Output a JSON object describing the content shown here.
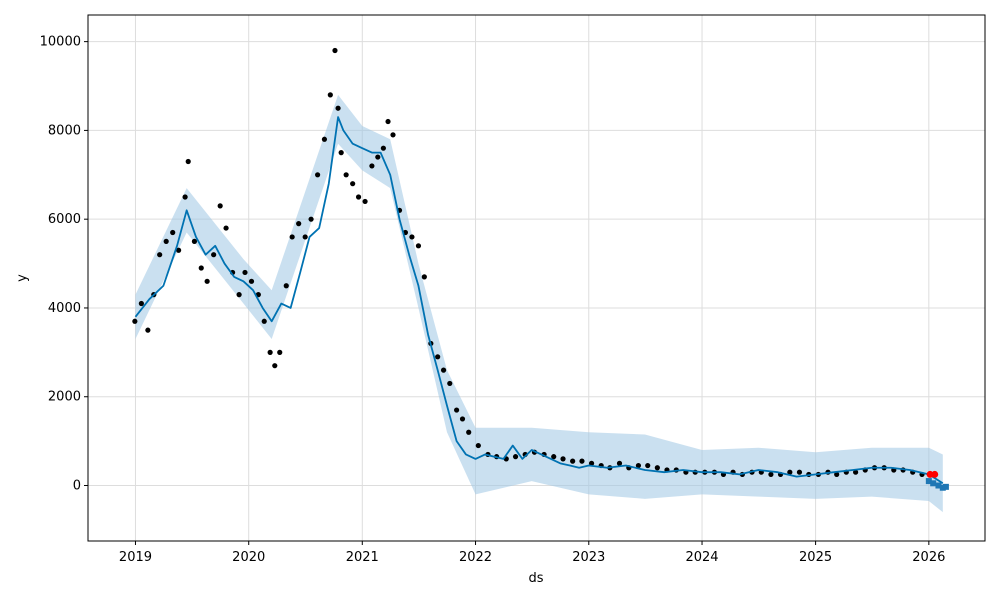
{
  "chart_data": {
    "type": "line",
    "title": "",
    "xlabel": "ds",
    "ylabel": "y",
    "x_range": [
      "2018-08-01",
      "2026-07-01"
    ],
    "ylim": [
      -1250,
      10600
    ],
    "x_ticks": [
      "2019",
      "2020",
      "2021",
      "2022",
      "2023",
      "2024",
      "2025",
      "2026"
    ],
    "y_ticks": [
      0,
      2000,
      4000,
      6000,
      8000,
      10000
    ],
    "grid": true,
    "legend": "none",
    "colors": {
      "forecast_line": "#0072B2",
      "uncertainty_band": "#9ec6e3",
      "observed_points": "#000000",
      "highlight_points": "#ff0000",
      "future_points": "#1f77b4"
    },
    "series": [
      {
        "role": "forecast",
        "x": [
          "2019-01-01",
          "2019-02-15",
          "2019-04-01",
          "2019-05-15",
          "2019-06-15",
          "2019-07-15",
          "2019-08-15",
          "2019-09-15",
          "2019-10-15",
          "2019-11-15",
          "2019-12-15",
          "2020-01-15",
          "2020-02-15",
          "2020-03-15",
          "2020-04-15",
          "2020-05-15",
          "2020-06-15",
          "2020-07-15",
          "2020-08-15",
          "2020-09-15",
          "2020-10-15",
          "2020-11-01",
          "2020-12-01",
          "2021-01-01",
          "2021-02-01",
          "2021-03-01",
          "2021-04-01",
          "2021-05-01",
          "2021-06-01",
          "2021-07-01",
          "2021-08-01",
          "2021-09-01",
          "2021-10-01",
          "2021-11-01",
          "2021-12-01",
          "2022-01-01",
          "2022-02-01",
          "2022-03-01",
          "2022-04-01",
          "2022-05-01",
          "2022-06-01",
          "2022-07-01",
          "2022-08-01",
          "2022-09-01",
          "2022-10-01",
          "2022-11-01",
          "2022-12-01",
          "2023-01-01",
          "2023-03-01",
          "2023-05-01",
          "2023-07-01",
          "2023-09-01",
          "2023-11-01",
          "2024-01-01",
          "2024-03-01",
          "2024-05-01",
          "2024-07-01",
          "2024-09-01",
          "2024-11-01",
          "2025-01-01",
          "2025-03-01",
          "2025-05-01",
          "2025-07-01",
          "2025-09-01",
          "2025-11-01",
          "2026-01-01",
          "2026-02-15"
        ],
        "values": [
          3800,
          4200,
          4500,
          5400,
          6200,
          5600,
          5200,
          5400,
          5000,
          4700,
          4600,
          4400,
          4000,
          3700,
          4100,
          4000,
          4800,
          5600,
          5800,
          6800,
          8300,
          8000,
          7700,
          7600,
          7500,
          7500,
          7000,
          6000,
          5200,
          4500,
          3400,
          2600,
          1800,
          1000,
          700,
          600,
          700,
          650,
          600,
          900,
          600,
          800,
          700,
          600,
          500,
          450,
          400,
          450,
          400,
          450,
          350,
          300,
          350,
          300,
          300,
          250,
          350,
          300,
          200,
          250,
          300,
          350,
          400,
          400,
          350,
          250,
          50
        ]
      },
      {
        "role": "uncertainty_upper",
        "x": [
          "2019-01-01",
          "2019-06-15",
          "2019-12-15",
          "2020-03-15",
          "2020-10-15",
          "2021-01-01",
          "2021-04-01",
          "2021-07-01",
          "2021-10-01",
          "2022-01-01",
          "2022-07-01",
          "2023-01-01",
          "2023-07-01",
          "2024-01-01",
          "2024-07-01",
          "2025-01-01",
          "2025-07-01",
          "2026-01-01",
          "2026-02-15"
        ],
        "values": [
          4300,
          6700,
          5100,
          4400,
          8800,
          8100,
          7800,
          5000,
          2600,
          1300,
          1300,
          1200,
          1150,
          800,
          850,
          750,
          850,
          850,
          700
        ]
      },
      {
        "role": "uncertainty_lower",
        "x": [
          "2019-01-01",
          "2019-06-15",
          "2019-12-15",
          "2020-03-15",
          "2020-10-15",
          "2021-01-01",
          "2021-04-01",
          "2021-07-01",
          "2021-10-01",
          "2022-01-01",
          "2022-07-01",
          "2023-01-01",
          "2023-07-01",
          "2024-01-01",
          "2024-07-01",
          "2025-01-01",
          "2025-07-01",
          "2026-01-01",
          "2026-02-15"
        ],
        "values": [
          3300,
          5700,
          4100,
          3300,
          7700,
          7100,
          6700,
          4000,
          1200,
          -200,
          100,
          -200,
          -300,
          -200,
          -250,
          -300,
          -250,
          -350,
          -600
        ]
      },
      {
        "role": "observed",
        "x": [
          "2018-12-30",
          "2019-01-20",
          "2019-02-10",
          "2019-03-01",
          "2019-03-20",
          "2019-04-10",
          "2019-05-01",
          "2019-05-20",
          "2019-06-10",
          "2019-06-20",
          "2019-07-10",
          "2019-08-01",
          "2019-08-20",
          "2019-09-10",
          "2019-10-01",
          "2019-10-20",
          "2019-11-10",
          "2019-12-01",
          "2019-12-20",
          "2020-01-10",
          "2020-02-01",
          "2020-02-20",
          "2020-03-10",
          "2020-03-25",
          "2020-04-10",
          "2020-05-01",
          "2020-05-20",
          "2020-06-10",
          "2020-07-01",
          "2020-07-20",
          "2020-08-10",
          "2020-09-01",
          "2020-09-20",
          "2020-10-05",
          "2020-10-15",
          "2020-10-25",
          "2020-11-10",
          "2020-12-01",
          "2020-12-20",
          "2021-01-10",
          "2021-02-01",
          "2021-02-20",
          "2021-03-10",
          "2021-03-25",
          "2021-04-10",
          "2021-05-01",
          "2021-05-20",
          "2021-06-10",
          "2021-07-01",
          "2021-07-20",
          "2021-08-10",
          "2021-09-01",
          "2021-09-20",
          "2021-10-10",
          "2021-11-01",
          "2021-11-20",
          "2021-12-10",
          "2022-01-10",
          "2022-02-10",
          "2022-03-10",
          "2022-04-10",
          "2022-05-10",
          "2022-06-10",
          "2022-07-10",
          "2022-08-10",
          "2022-09-10",
          "2022-10-10",
          "2022-11-10",
          "2022-12-10",
          "2023-01-10",
          "2023-02-10",
          "2023-03-10",
          "2023-04-10",
          "2023-05-10",
          "2023-06-10",
          "2023-07-10",
          "2023-08-10",
          "2023-09-10",
          "2023-10-10",
          "2023-11-10",
          "2023-12-10",
          "2024-01-10",
          "2024-02-10",
          "2024-03-10",
          "2024-04-10",
          "2024-05-10",
          "2024-06-10",
          "2024-07-10",
          "2024-08-10",
          "2024-09-10",
          "2024-10-10",
          "2024-11-10",
          "2024-12-10",
          "2025-01-10",
          "2025-02-10",
          "2025-03-10",
          "2025-04-10",
          "2025-05-10",
          "2025-06-10",
          "2025-07-10",
          "2025-08-10",
          "2025-09-10",
          "2025-10-10",
          "2025-11-10",
          "2025-12-10"
        ],
        "values": [
          3700,
          4100,
          3500,
          4300,
          5200,
          5500,
          5700,
          5300,
          6500,
          7300,
          5500,
          4900,
          4600,
          5200,
          6300,
          5800,
          4800,
          4300,
          4800,
          4600,
          4300,
          3700,
          3000,
          2700,
          3000,
          4500,
          5600,
          5900,
          5600,
          6000,
          7000,
          7800,
          8800,
          9800,
          8500,
          7500,
          7000,
          6800,
          6500,
          6400,
          7200,
          7400,
          7600,
          8200,
          7900,
          6200,
          5700,
          5600,
          5400,
          4700,
          3200,
          2900,
          2600,
          2300,
          1700,
          1500,
          1200,
          900,
          700,
          650,
          600,
          650,
          700,
          750,
          700,
          650,
          600,
          550,
          550,
          500,
          450,
          400,
          500,
          400,
          450,
          450,
          400,
          350,
          350,
          300,
          300,
          300,
          300,
          250,
          300,
          250,
          300,
          300,
          250,
          250,
          300,
          300,
          250,
          250,
          300,
          250,
          300,
          300,
          350,
          400,
          400,
          350,
          350,
          300,
          250
        ]
      },
      {
        "role": "highlight",
        "x": [
          "2026-01-05",
          "2026-01-20"
        ],
        "values": [
          250,
          250
        ]
      },
      {
        "role": "future",
        "x": [
          "2026-01-01",
          "2026-01-15",
          "2026-02-01",
          "2026-02-15",
          "2026-02-25"
        ],
        "values": [
          100,
          50,
          0,
          -50,
          -30
        ]
      }
    ]
  }
}
